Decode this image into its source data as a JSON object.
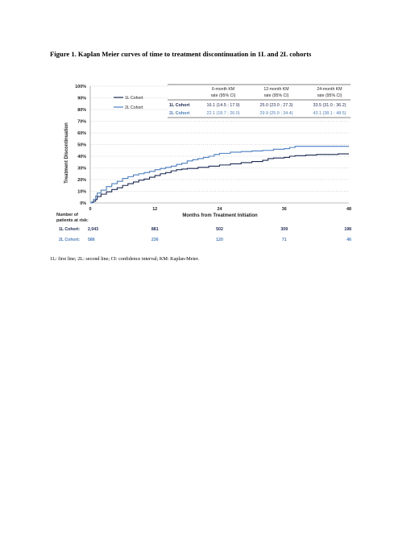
{
  "figure": {
    "title": "Figure 1. Kaplan Meier curves of time to treatment discontinuation in 1L and 2L cohorts",
    "footnote": "1L: first line; 2L: second line; CI: confidence interval; KM: Kaplan-Meier."
  },
  "colors": {
    "cohort_1L": "#1b2a55",
    "cohort_2L": "#4a7fc4",
    "grid": "#b5b5b5",
    "axis": "#808080"
  },
  "chart_data": {
    "type": "line",
    "xlabel": "Months from Treatment Initiation",
    "ylabel": "Treatment Discontinuation",
    "xlim": [
      0,
      48
    ],
    "ylim": [
      0,
      100
    ],
    "x_ticks": [
      "0",
      "12",
      "24",
      "36",
      "48"
    ],
    "y_ticks": [
      "0%",
      "10%",
      "20%",
      "30%",
      "40%",
      "50%",
      "60%",
      "70%",
      "80%",
      "90%",
      "100%"
    ],
    "grid": "horizontal dotted",
    "legend_position": "top-left",
    "series": [
      {
        "name": "1L Cohort",
        "step": true,
        "points": [
          [
            0,
            0
          ],
          [
            0.3,
            0.5
          ],
          [
            0.6,
            1.5
          ],
          [
            1,
            3
          ],
          [
            1.3,
            5.5
          ],
          [
            2,
            7.5
          ],
          [
            3,
            9.5
          ],
          [
            4,
            11.5
          ],
          [
            5,
            13
          ],
          [
            6,
            15
          ],
          [
            7,
            16.5
          ],
          [
            8,
            18
          ],
          [
            9,
            19.5
          ],
          [
            10,
            20.5
          ],
          [
            11,
            22
          ],
          [
            12,
            23.5
          ],
          [
            13,
            25
          ],
          [
            14,
            26
          ],
          [
            15,
            27.5
          ],
          [
            16,
            28.5
          ],
          [
            17,
            29
          ],
          [
            18,
            29.5
          ],
          [
            20,
            30.5
          ],
          [
            22,
            31.5
          ],
          [
            24,
            32.5
          ],
          [
            26,
            33.5
          ],
          [
            28,
            34.5
          ],
          [
            30,
            35.5
          ],
          [
            32,
            36.5
          ],
          [
            33,
            38
          ],
          [
            34,
            38.5
          ],
          [
            36,
            39
          ],
          [
            37,
            40
          ],
          [
            38,
            40.5
          ],
          [
            40,
            41
          ],
          [
            42,
            41.5
          ],
          [
            44,
            41.5
          ],
          [
            46,
            42
          ],
          [
            47,
            42
          ],
          [
            48,
            42
          ]
        ]
      },
      {
        "name": "2L Cohort",
        "step": true,
        "points": [
          [
            0,
            0
          ],
          [
            0.3,
            1
          ],
          [
            0.6,
            3
          ],
          [
            1,
            6
          ],
          [
            1.3,
            8.5
          ],
          [
            2,
            11
          ],
          [
            3,
            14
          ],
          [
            4,
            16.5
          ],
          [
            5,
            18.5
          ],
          [
            6,
            21
          ],
          [
            7,
            22.5
          ],
          [
            8,
            24
          ],
          [
            9,
            25
          ],
          [
            10,
            26
          ],
          [
            11,
            27
          ],
          [
            12,
            28.5
          ],
          [
            13,
            29.5
          ],
          [
            14,
            30.5
          ],
          [
            15,
            31.5
          ],
          [
            16,
            33
          ],
          [
            17,
            34
          ],
          [
            18,
            36
          ],
          [
            19,
            37
          ],
          [
            20,
            38
          ],
          [
            21,
            39
          ],
          [
            22,
            40
          ],
          [
            23,
            41.5
          ],
          [
            24,
            42.5
          ],
          [
            26,
            43.5
          ],
          [
            28,
            44
          ],
          [
            30,
            44.5
          ],
          [
            32,
            45
          ],
          [
            34,
            46
          ],
          [
            36,
            46.5
          ],
          [
            37,
            47.5
          ],
          [
            38,
            48.5
          ],
          [
            40,
            48.5
          ],
          [
            44,
            48.5
          ],
          [
            48,
            48.5
          ]
        ]
      }
    ]
  },
  "km_table": {
    "headers": [
      "6-month KM rate (95% CI)",
      "12-month KM rate (95% CI)",
      "24-month KM rate (95% CI)"
    ],
    "header_lines": [
      [
        "6-month KM",
        "rate (95% CI)"
      ],
      [
        "12-month KM",
        "rate (95% CI)"
      ],
      [
        "24-month KM",
        "rate (95% CI)"
      ]
    ],
    "rows": [
      {
        "label": "1L Cohort",
        "cells": [
          "16.1 (14.5 ; 17.9)",
          "25.0 (23.0 ; 27.3)",
          "33.5 (31.0 ; 36.2)"
        ]
      },
      {
        "label": "2L Cohort",
        "cells": [
          "22.1 (18.7 ; 26.0)",
          "29.9 (25.9 ; 34.4)",
          "43.1 (38.1 ; 48.5)"
        ]
      }
    ]
  },
  "risk_table": {
    "title_lines": [
      "Number of",
      "patients at risk:"
    ],
    "rows": [
      {
        "label": "1L Cohort:",
        "values": [
          "2,043",
          "881",
          "502",
          "309",
          "198"
        ]
      },
      {
        "label": "2L Cohort:",
        "values": [
          "586",
          "236",
          "120",
          "71",
          "46"
        ]
      }
    ]
  }
}
